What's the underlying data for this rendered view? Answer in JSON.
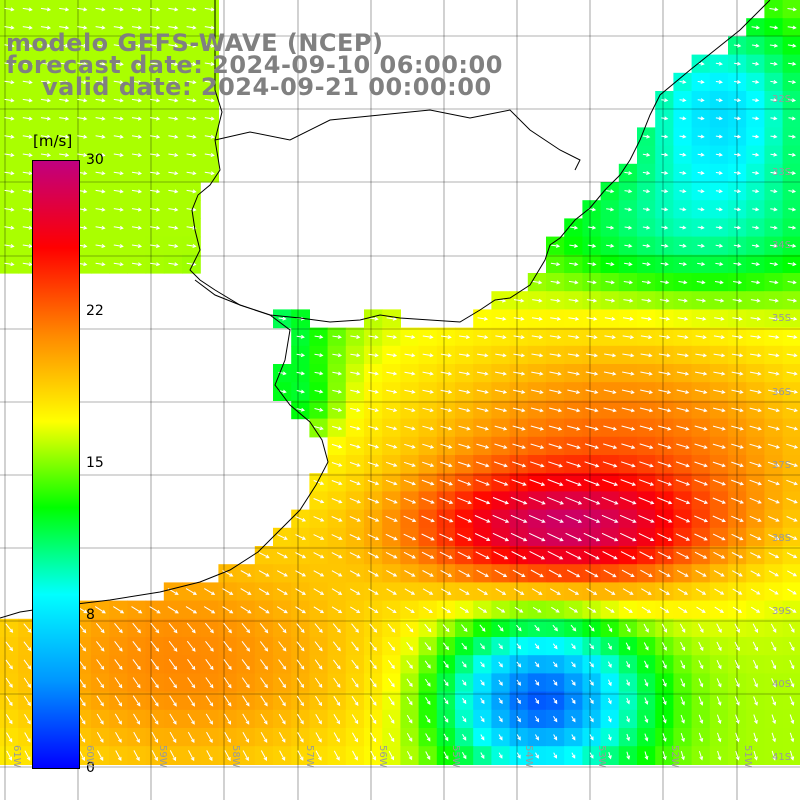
{
  "title": {
    "line1": "modelo GEFS-WAVE (NCEP)",
    "line2": "forecast date: 2024-09-10 06:00:00",
    "line3": "valid date: 2024-09-21 00:00:00"
  },
  "colorbar": {
    "unit": "[m/s]",
    "ticks": [
      "30",
      "22",
      "15",
      "8",
      "0"
    ],
    "tick_values": [
      30,
      22,
      15,
      8,
      0
    ],
    "range": [
      0,
      30
    ],
    "colors": [
      "#0000ff",
      "#0096ff",
      "#00ffff",
      "#00ff00",
      "#ffff00",
      "#ff8800",
      "#ff0000",
      "#c00080"
    ]
  },
  "map": {
    "variable": "wind speed",
    "lat_labels": [
      "32S",
      "33S",
      "34S",
      "35S",
      "36S",
      "37S",
      "38S",
      "39S",
      "40S",
      "41S"
    ],
    "lon_labels": [
      "61W",
      "60W",
      "59W",
      "58W",
      "57W",
      "56W",
      "55W",
      "54W",
      "53W",
      "52W",
      "51W"
    ],
    "land_color": "#ffffff",
    "coastline_color": "#000000",
    "grid_color": "#000000",
    "arrow_color": "#ffffff",
    "max_wind_region": "around 38S 55W",
    "wind_direction": "from northwest to southeast"
  }
}
